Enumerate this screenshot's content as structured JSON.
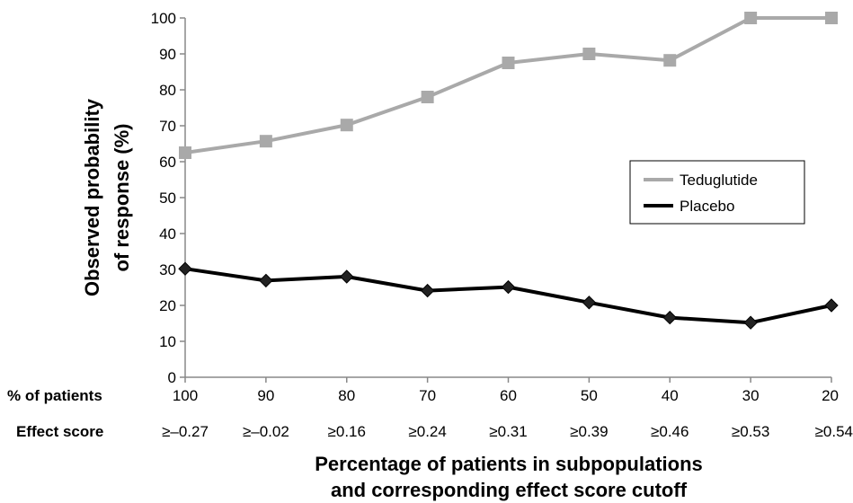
{
  "chart_data": {
    "type": "line",
    "categories": [
      "100",
      "90",
      "80",
      "70",
      "60",
      "50",
      "40",
      "30",
      "20"
    ],
    "effect_scores": [
      "≥–0.27",
      "≥–0.02",
      "≥0.16",
      "≥0.24",
      "≥0.31",
      "≥0.39",
      "≥0.46",
      "≥0.53",
      "≥0.54"
    ],
    "series": [
      {
        "name": "Teduglutide",
        "color": "#a9a9a9",
        "marker": "square",
        "values": [
          62.5,
          65.7,
          70.2,
          78.0,
          87.5,
          90.0,
          88.2,
          100,
          100
        ]
      },
      {
        "name": "Placebo",
        "color": "#000000",
        "marker": "diamond",
        "values": [
          30.2,
          26.9,
          28.0,
          24.1,
          25.1,
          20.8,
          16.6,
          15.2,
          20.0
        ]
      }
    ],
    "yticks": [
      0,
      10,
      20,
      30,
      40,
      50,
      60,
      70,
      80,
      90,
      100
    ],
    "ylim": [
      0,
      100
    ],
    "ylabel_line1": "Observed probability",
    "ylabel_line2": "of response (%)",
    "row_labels": {
      "percent": "% of patients",
      "effect": "Effect score"
    },
    "xlabel_line1": "Percentage of patients in subpopulations",
    "xlabel_line2": "and corresponding effect score cutoff",
    "legend": {
      "position": "right"
    },
    "grid": false
  }
}
